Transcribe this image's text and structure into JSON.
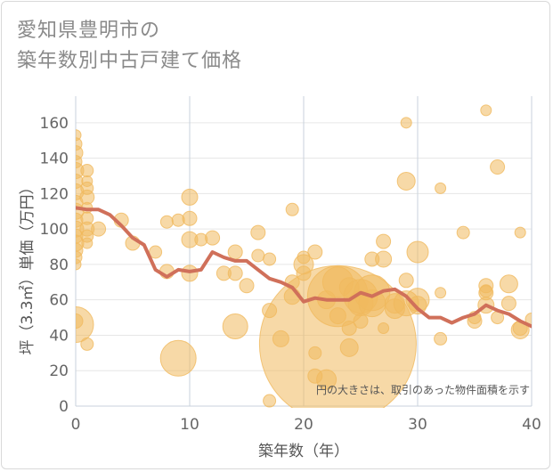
{
  "chart_data": {
    "type": "scatter",
    "title_lines": [
      "愛知県豊明市の",
      "築年数別中古戸建て価格"
    ],
    "xlabel": "築年数（年）",
    "ylabel": "坪（3.3㎡）単価（万円）",
    "xlim": [
      0,
      40
    ],
    "ylim": [
      0,
      175
    ],
    "xticks": [
      0,
      10,
      20,
      30,
      40
    ],
    "yticks": [
      0,
      20,
      40,
      60,
      80,
      100,
      120,
      140,
      160
    ],
    "grid": true,
    "annotation": "円の大きさは、取引のあった物件面積を示す",
    "bubble_color": "#f0b95e",
    "line_color": "#d0705a",
    "bubbles": [
      {
        "x": 0,
        "y": 153,
        "s": 6
      },
      {
        "x": 0,
        "y": 148,
        "s": 7
      },
      {
        "x": 0,
        "y": 143,
        "s": 8
      },
      {
        "x": 0,
        "y": 138,
        "s": 7
      },
      {
        "x": 0,
        "y": 133,
        "s": 9
      },
      {
        "x": 0,
        "y": 127,
        "s": 8
      },
      {
        "x": 0,
        "y": 121,
        "s": 9
      },
      {
        "x": 0,
        "y": 115,
        "s": 8
      },
      {
        "x": 0,
        "y": 110,
        "s": 9
      },
      {
        "x": 0,
        "y": 105,
        "s": 8
      },
      {
        "x": 0,
        "y": 100,
        "s": 9
      },
      {
        "x": 0,
        "y": 96,
        "s": 8
      },
      {
        "x": 0,
        "y": 92,
        "s": 9
      },
      {
        "x": 0,
        "y": 88,
        "s": 8
      },
      {
        "x": 0,
        "y": 84,
        "s": 7
      },
      {
        "x": 0,
        "y": 80,
        "s": 6
      },
      {
        "x": 0,
        "y": 46,
        "s": 20
      },
      {
        "x": 0,
        "y": 48,
        "s": 8
      },
      {
        "x": 1,
        "y": 133,
        "s": 7
      },
      {
        "x": 1,
        "y": 127,
        "s": 6
      },
      {
        "x": 1,
        "y": 123,
        "s": 7
      },
      {
        "x": 1,
        "y": 118,
        "s": 8
      },
      {
        "x": 1,
        "y": 112,
        "s": 6
      },
      {
        "x": 1,
        "y": 106,
        "s": 7
      },
      {
        "x": 1,
        "y": 100,
        "s": 8
      },
      {
        "x": 1,
        "y": 96,
        "s": 7
      },
      {
        "x": 1,
        "y": 92,
        "s": 6
      },
      {
        "x": 1,
        "y": 35,
        "s": 7
      },
      {
        "x": 2,
        "y": 100,
        "s": 8
      },
      {
        "x": 4,
        "y": 105,
        "s": 8
      },
      {
        "x": 5,
        "y": 92,
        "s": 8
      },
      {
        "x": 7,
        "y": 87,
        "s": 7
      },
      {
        "x": 8,
        "y": 104,
        "s": 7
      },
      {
        "x": 8,
        "y": 76,
        "s": 8
      },
      {
        "x": 9,
        "y": 27,
        "s": 20
      },
      {
        "x": 9,
        "y": 105,
        "s": 7
      },
      {
        "x": 10,
        "y": 118,
        "s": 9
      },
      {
        "x": 10,
        "y": 106,
        "s": 8
      },
      {
        "x": 10,
        "y": 94,
        "s": 9
      },
      {
        "x": 10,
        "y": 75,
        "s": 9
      },
      {
        "x": 11,
        "y": 94,
        "s": 7
      },
      {
        "x": 12,
        "y": 95,
        "s": 8
      },
      {
        "x": 13,
        "y": 75,
        "s": 8
      },
      {
        "x": 14,
        "y": 87,
        "s": 8
      },
      {
        "x": 14,
        "y": 45,
        "s": 14
      },
      {
        "x": 14,
        "y": 75,
        "s": 8
      },
      {
        "x": 15,
        "y": 68,
        "s": 8
      },
      {
        "x": 16,
        "y": 98,
        "s": 8
      },
      {
        "x": 16,
        "y": 85,
        "s": 7
      },
      {
        "x": 17,
        "y": 83,
        "s": 7
      },
      {
        "x": 17,
        "y": 54,
        "s": 8
      },
      {
        "x": 17,
        "y": 3,
        "s": 7
      },
      {
        "x": 18,
        "y": 38,
        "s": 9
      },
      {
        "x": 19,
        "y": 111,
        "s": 7
      },
      {
        "x": 19,
        "y": 70,
        "s": 8
      },
      {
        "x": 19,
        "y": 62,
        "s": 9
      },
      {
        "x": 20,
        "y": 84,
        "s": 7
      },
      {
        "x": 20,
        "y": 80,
        "s": 11
      },
      {
        "x": 20,
        "y": 75,
        "s": 8
      },
      {
        "x": 21,
        "y": 87,
        "s": 8
      },
      {
        "x": 21,
        "y": 30,
        "s": 7
      },
      {
        "x": 21,
        "y": 17,
        "s": 8
      },
      {
        "x": 22,
        "y": 15,
        "s": 11
      },
      {
        "x": 22,
        "y": 60,
        "s": 10
      },
      {
        "x": 23,
        "y": 35,
        "s": 88
      },
      {
        "x": 23,
        "y": 70,
        "s": 17
      },
      {
        "x": 23,
        "y": 62,
        "s": 34
      },
      {
        "x": 23,
        "y": 51,
        "s": 9
      },
      {
        "x": 24,
        "y": 67,
        "s": 11
      },
      {
        "x": 24,
        "y": 44,
        "s": 8
      },
      {
        "x": 24,
        "y": 33,
        "s": 10
      },
      {
        "x": 25,
        "y": 62,
        "s": 19
      },
      {
        "x": 25,
        "y": 58,
        "s": 14
      },
      {
        "x": 25,
        "y": 48,
        "s": 8
      },
      {
        "x": 26,
        "y": 83,
        "s": 8
      },
      {
        "x": 26,
        "y": 64,
        "s": 20
      },
      {
        "x": 26,
        "y": 58,
        "s": 15
      },
      {
        "x": 27,
        "y": 93,
        "s": 8
      },
      {
        "x": 27,
        "y": 83,
        "s": 9
      },
      {
        "x": 27,
        "y": 44,
        "s": 6
      },
      {
        "x": 28,
        "y": 55,
        "s": 11
      },
      {
        "x": 28,
        "y": 58,
        "s": 11
      },
      {
        "x": 29,
        "y": 160,
        "s": 6
      },
      {
        "x": 29,
        "y": 127,
        "s": 10
      },
      {
        "x": 29,
        "y": 71,
        "s": 8
      },
      {
        "x": 29,
        "y": 58,
        "s": 14
      },
      {
        "x": 30,
        "y": 87,
        "s": 12
      },
      {
        "x": 30,
        "y": 60,
        "s": 13
      },
      {
        "x": 30,
        "y": 57,
        "s": 10
      },
      {
        "x": 32,
        "y": 123,
        "s": 6
      },
      {
        "x": 32,
        "y": 64,
        "s": 6
      },
      {
        "x": 32,
        "y": 38,
        "s": 7
      },
      {
        "x": 34,
        "y": 98,
        "s": 7
      },
      {
        "x": 35,
        "y": 48,
        "s": 8
      },
      {
        "x": 35,
        "y": 50,
        "s": 7
      },
      {
        "x": 36,
        "y": 167,
        "s": 6
      },
      {
        "x": 36,
        "y": 68,
        "s": 8
      },
      {
        "x": 36,
        "y": 65,
        "s": 7
      },
      {
        "x": 36,
        "y": 64,
        "s": 8
      },
      {
        "x": 36,
        "y": 57,
        "s": 9
      },
      {
        "x": 37,
        "y": 135,
        "s": 8
      },
      {
        "x": 37,
        "y": 50,
        "s": 7
      },
      {
        "x": 38,
        "y": 69,
        "s": 10
      },
      {
        "x": 38,
        "y": 58,
        "s": 8
      },
      {
        "x": 39,
        "y": 98,
        "s": 6
      },
      {
        "x": 39,
        "y": 43,
        "s": 10
      },
      {
        "x": 39,
        "y": 44,
        "s": 8
      },
      {
        "x": 40,
        "y": 49,
        "s": 7
      }
    ],
    "trend": {
      "x": [
        0,
        1,
        2,
        3,
        4,
        5,
        6,
        7,
        8,
        9,
        10,
        11,
        12,
        13,
        14,
        15,
        16,
        17,
        18,
        19,
        20,
        21,
        22,
        23,
        24,
        25,
        26,
        27,
        28,
        29,
        30,
        31,
        32,
        33,
        34,
        35,
        36,
        37,
        38,
        39,
        40
      ],
      "y": [
        112,
        111,
        111,
        108,
        102,
        95,
        91,
        77,
        73,
        77,
        76,
        77,
        87,
        84,
        82,
        82,
        77,
        72,
        70,
        67,
        59,
        61,
        60,
        60,
        60,
        64,
        62,
        65,
        66,
        62,
        55,
        50,
        50,
        47,
        50,
        52,
        57,
        54,
        52,
        48,
        45
      ]
    }
  }
}
